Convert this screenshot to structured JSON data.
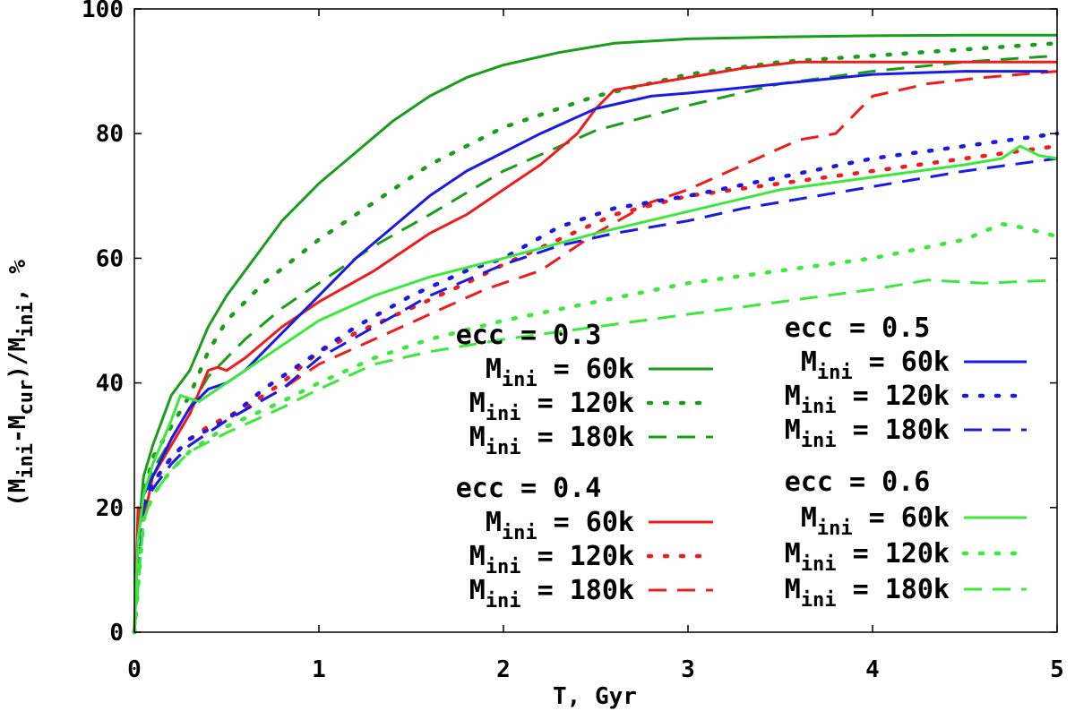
{
  "chart_data": {
    "type": "line",
    "title": "",
    "xlabel": "T, Gyr",
    "ylabel": {
      "prefix": "(M",
      "sub1": "ini",
      "mid1": "-M",
      "sub2": "cur",
      "mid2": ")/M",
      "sub3": "ini",
      "suffix": ", %"
    },
    "xlim": [
      0,
      5
    ],
    "ylim": [
      0,
      100
    ],
    "x_ticks": [
      0,
      1,
      2,
      3,
      4,
      5
    ],
    "y_ticks": [
      0,
      20,
      40,
      60,
      80,
      100
    ],
    "x_tick_labels": [
      "0",
      "1",
      "2",
      "3",
      "4",
      "5"
    ],
    "y_tick_labels": [
      "0",
      "20",
      "40",
      "60",
      "80",
      "100"
    ],
    "grid": false,
    "legend_placement": "lower-right",
    "legend_groups": [
      {
        "title": "ecc = 0.3",
        "entries": [
          0,
          1,
          2
        ]
      },
      {
        "title": "ecc = 0.5",
        "entries": [
          6,
          7,
          8
        ]
      },
      {
        "title": "ecc = 0.4",
        "entries": [
          3,
          4,
          5
        ]
      },
      {
        "title": "ecc = 0.6",
        "entries": [
          9,
          10,
          11
        ]
      }
    ],
    "series": [
      {
        "name": "ecc = 0.3, M_ini = 60k",
        "legend_mass": "60k",
        "ecc": "0.3",
        "color": "#1a9e1a",
        "dash": "solid",
        "x": [
          0,
          0.02,
          0.05,
          0.1,
          0.2,
          0.3,
          0.4,
          0.5,
          0.6,
          0.7,
          0.8,
          1.0,
          1.2,
          1.4,
          1.6,
          1.8,
          2.0,
          2.3,
          2.6,
          3.0,
          3.5,
          4.0,
          4.5,
          5.0
        ],
        "y": [
          0,
          15,
          25,
          30,
          38,
          42,
          49,
          54,
          58,
          62,
          66,
          72,
          77,
          82,
          86,
          89,
          91,
          93,
          94.5,
          95.2,
          95.5,
          95.7,
          95.8,
          95.8
        ]
      },
      {
        "name": "ecc = 0.3, M_ini = 120k",
        "legend_mass": "120k",
        "ecc": "0.3",
        "color": "#1a9e1a",
        "dash": "dot",
        "x": [
          0,
          0.05,
          0.1,
          0.2,
          0.3,
          0.4,
          0.5,
          0.7,
          1.0,
          1.3,
          1.6,
          2.0,
          2.5,
          3.0,
          3.5,
          4.0,
          4.5,
          5.0
        ],
        "y": [
          0,
          22,
          28,
          33,
          38,
          45,
          50,
          56,
          63,
          69,
          75,
          81,
          86,
          89.5,
          91.5,
          92.5,
          93.5,
          94.5
        ]
      },
      {
        "name": "ecc = 0.3, M_ini = 180k",
        "legend_mass": "180k",
        "ecc": "0.3",
        "color": "#1a9e1a",
        "dash": "dash",
        "x": [
          0,
          0.05,
          0.1,
          0.2,
          0.3,
          0.4,
          0.6,
          0.8,
          1.0,
          1.3,
          1.6,
          2.0,
          2.5,
          3.0,
          3.5,
          4.0,
          4.5,
          5.0
        ],
        "y": [
          0,
          20,
          26,
          31,
          36,
          41,
          47,
          52,
          56,
          62,
          67,
          74,
          80.5,
          84.5,
          88,
          90,
          91.5,
          92.5
        ]
      },
      {
        "name": "ecc = 0.4, M_ini = 60k",
        "legend_mass": "60k",
        "ecc": "0.4",
        "color": "#ee1c1c",
        "dash": "solid",
        "x": [
          0,
          0.02,
          0.05,
          0.1,
          0.2,
          0.3,
          0.4,
          0.45,
          0.5,
          0.6,
          0.8,
          1.0,
          1.3,
          1.6,
          1.8,
          2.0,
          2.2,
          2.4,
          2.5,
          2.6,
          2.8,
          3.0,
          3.3,
          3.6,
          4.0,
          4.5,
          5.0
        ],
        "y": [
          0,
          20,
          18,
          25,
          30,
          35,
          42,
          42.5,
          42,
          44,
          49,
          53,
          58,
          64,
          67,
          71,
          75,
          80,
          84,
          87,
          88,
          89,
          90.5,
          91.5,
          91.5,
          91.5,
          91.5
        ]
      },
      {
        "name": "ecc = 0.4, M_ini = 120k",
        "legend_mass": "120k",
        "ecc": "0.4",
        "color": "#ee1c1c",
        "dash": "dot",
        "x": [
          0,
          0.05,
          0.1,
          0.2,
          0.3,
          0.4,
          0.6,
          0.8,
          1.0,
          1.2,
          1.5,
          1.8,
          2.0,
          2.3,
          2.6,
          3.0,
          3.5,
          4.0,
          4.5,
          5.0
        ],
        "y": [
          0,
          20,
          24,
          28,
          31,
          33,
          36,
          40,
          45,
          48,
          52,
          56,
          59,
          63,
          67,
          70,
          72,
          74,
          76,
          78
        ]
      },
      {
        "name": "ecc = 0.4, M_ini = 180k",
        "legend_mass": "180k",
        "ecc": "0.4",
        "color": "#ee1c1c",
        "dash": "dash",
        "x": [
          0,
          0.05,
          0.1,
          0.2,
          0.3,
          0.5,
          0.8,
          1.0,
          1.3,
          1.6,
          1.9,
          2.2,
          2.5,
          2.8,
          3.0,
          3.3,
          3.6,
          3.8,
          4.0,
          4.3,
          4.6,
          5.0
        ],
        "y": [
          0,
          19,
          23,
          27,
          30,
          34,
          39,
          43,
          47,
          51,
          55,
          58,
          64,
          69,
          71,
          75,
          79,
          80,
          86,
          88,
          89,
          90
        ]
      },
      {
        "name": "ecc = 0.5, M_ini = 60k",
        "legend_mass": "60k",
        "ecc": "0.5",
        "color": "#1a1ae6",
        "dash": "solid",
        "x": [
          0,
          0.02,
          0.05,
          0.1,
          0.2,
          0.3,
          0.4,
          0.5,
          0.6,
          0.8,
          1.0,
          1.2,
          1.4,
          1.6,
          1.8,
          2.0,
          2.2,
          2.5,
          2.8,
          3.0,
          3.5,
          4.0,
          4.5,
          4.95
        ],
        "y": [
          0,
          15,
          22,
          25,
          31,
          36,
          39,
          40,
          42,
          48,
          54,
          60,
          65,
          70,
          74,
          77,
          80,
          84,
          86,
          86.5,
          88,
          89.5,
          90,
          90
        ]
      },
      {
        "name": "ecc = 0.5, M_ini = 120k",
        "legend_mass": "120k",
        "ecc": "0.5",
        "color": "#1a1ae6",
        "dash": "dot",
        "x": [
          0,
          0.05,
          0.1,
          0.2,
          0.3,
          0.5,
          0.7,
          0.9,
          1.2,
          1.5,
          1.8,
          2.0,
          2.3,
          2.6,
          3.0,
          3.5,
          4.0,
          4.5,
          5.0
        ],
        "y": [
          0,
          21,
          24,
          28,
          31,
          34,
          39,
          43,
          49,
          54,
          58,
          60,
          65,
          68,
          70,
          73,
          76,
          78,
          80
        ]
      },
      {
        "name": "ecc = 0.5, M_ini = 180k",
        "legend_mass": "180k",
        "ecc": "0.5",
        "color": "#1a1ae6",
        "dash": "dash",
        "x": [
          0,
          0.05,
          0.1,
          0.2,
          0.3,
          0.5,
          0.8,
          1.0,
          1.3,
          1.6,
          2.0,
          2.3,
          2.6,
          3.0,
          3.3,
          3.6,
          4.0,
          4.5,
          5.0
        ],
        "y": [
          0,
          20,
          23,
          27,
          30,
          34,
          39,
          44,
          49,
          54,
          59,
          62,
          64,
          66,
          68,
          69.5,
          71.5,
          74,
          76
        ]
      },
      {
        "name": "ecc = 0.6, M_ini = 60k",
        "legend_mass": "60k",
        "ecc": "0.6",
        "color": "#3de83d",
        "dash": "solid",
        "x": [
          0,
          0.02,
          0.05,
          0.1,
          0.2,
          0.25,
          0.3,
          0.35,
          0.4,
          0.5,
          0.6,
          0.8,
          1.0,
          1.3,
          1.6,
          2.0,
          2.5,
          3.0,
          3.5,
          4.0,
          4.5,
          4.7,
          4.8,
          4.9,
          5.0
        ],
        "y": [
          0,
          15,
          22,
          27,
          34,
          38,
          37.5,
          37,
          38,
          40,
          42,
          46,
          50,
          54,
          57,
          60,
          64,
          67.5,
          71,
          73,
          75,
          76,
          78,
          76.5,
          76
        ]
      },
      {
        "name": "ecc = 0.6, M_ini = 120k",
        "legend_mass": "120k",
        "ecc": "0.6",
        "color": "#3de83d",
        "dash": "dot",
        "x": [
          0,
          0.05,
          0.1,
          0.2,
          0.3,
          0.5,
          0.8,
          1.0,
          1.3,
          1.6,
          2.0,
          2.5,
          3.0,
          3.5,
          4.0,
          4.5,
          4.7,
          4.8,
          5.0
        ],
        "y": [
          0,
          18,
          22,
          26,
          29,
          33,
          37,
          40,
          44,
          47,
          50,
          53,
          56,
          58,
          60,
          63,
          65.5,
          65,
          63.5
        ]
      },
      {
        "name": "ecc = 0.6, M_ini = 180k",
        "legend_mass": "180k",
        "ecc": "0.6",
        "color": "#3de83d",
        "dash": "dash",
        "x": [
          0,
          0.05,
          0.1,
          0.2,
          0.3,
          0.5,
          0.8,
          1.0,
          1.3,
          1.6,
          2.0,
          2.5,
          3.0,
          3.5,
          4.0,
          4.3,
          4.6,
          5.0
        ],
        "y": [
          0,
          18,
          22,
          26,
          29,
          32,
          36,
          39,
          43,
          45,
          47,
          49,
          51,
          53,
          55,
          56.5,
          56,
          56.5
        ]
      }
    ]
  }
}
